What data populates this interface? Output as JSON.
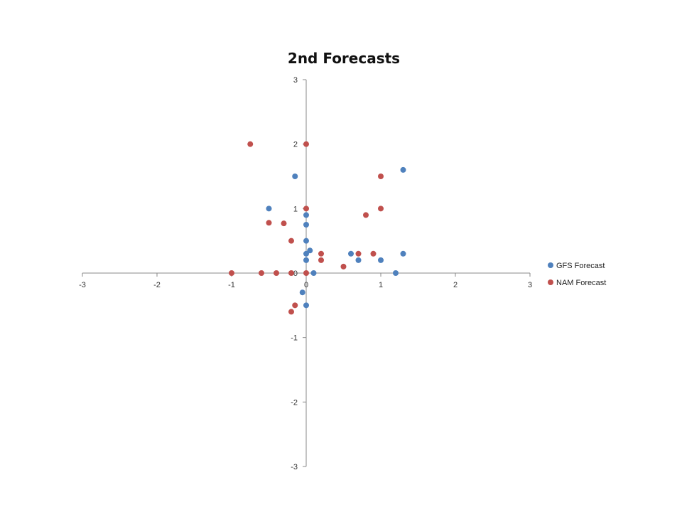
{
  "chart_data": {
    "type": "scatter",
    "title": "2nd Forecasts",
    "xlabel": "",
    "ylabel": "",
    "xlim": [
      -3,
      3
    ],
    "ylim": [
      -3,
      3
    ],
    "x_ticks": [
      -3,
      -2,
      -1,
      0,
      1,
      2,
      3
    ],
    "y_ticks": [
      -3,
      -2,
      -1,
      0,
      1,
      2,
      3
    ],
    "grid": false,
    "legend_position": "right",
    "series": [
      {
        "name": "GFS Forecast",
        "color": "#4F81BD",
        "points": [
          [
            -0.15,
            1.5
          ],
          [
            -0.5,
            1.0
          ],
          [
            0,
            0.9
          ],
          [
            0,
            0.75
          ],
          [
            0,
            0.5
          ],
          [
            0,
            0.3
          ],
          [
            0.05,
            0.35
          ],
          [
            0,
            0.2
          ],
          [
            0.6,
            0.3
          ],
          [
            0.7,
            0.2
          ],
          [
            1.0,
            0.2
          ],
          [
            1.3,
            0.3
          ],
          [
            1.3,
            1.6
          ],
          [
            1.2,
            0.0
          ],
          [
            0.1,
            0.0
          ],
          [
            -0.05,
            -0.3
          ],
          [
            0,
            -0.5
          ]
        ]
      },
      {
        "name": "NAM Forecast",
        "color": "#C0504D",
        "points": [
          [
            -0.75,
            2.0
          ],
          [
            0,
            2.0
          ],
          [
            1.0,
            1.5
          ],
          [
            1.0,
            1.0
          ],
          [
            0,
            1.0
          ],
          [
            0.8,
            0.9
          ],
          [
            -0.5,
            0.78
          ],
          [
            -0.3,
            0.77
          ],
          [
            -0.2,
            0.5
          ],
          [
            0.2,
            0.3
          ],
          [
            0.7,
            0.3
          ],
          [
            0.9,
            0.3
          ],
          [
            0.2,
            0.2
          ],
          [
            0.5,
            0.1
          ],
          [
            -1.0,
            0.0
          ],
          [
            -0.6,
            0.0
          ],
          [
            -0.4,
            0.0
          ],
          [
            -0.2,
            0.0
          ],
          [
            0,
            0.0
          ],
          [
            -0.15,
            -0.5
          ],
          [
            -0.2,
            -0.6
          ]
        ]
      }
    ]
  }
}
